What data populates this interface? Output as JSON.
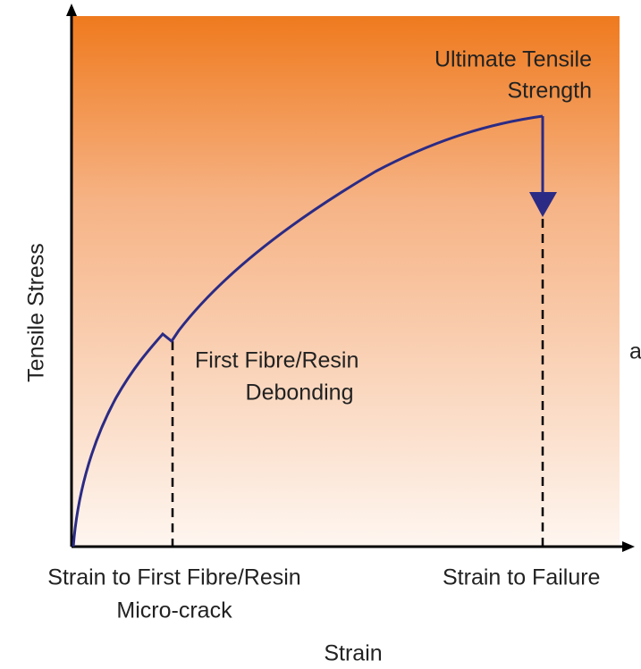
{
  "y_axis_label": "Tensile Stress",
  "x_axis_label": "Strain",
  "annotations": {
    "ultimate": [
      "Ultimate Tensile",
      "Strength"
    ],
    "debonding": [
      "First Fibre/Resin",
      "Debonding"
    ],
    "first_crack": [
      "Strain to First Fibre/Resin",
      "Micro-crack"
    ],
    "failure": "Strain to Failure",
    "fragment": "a"
  }
}
